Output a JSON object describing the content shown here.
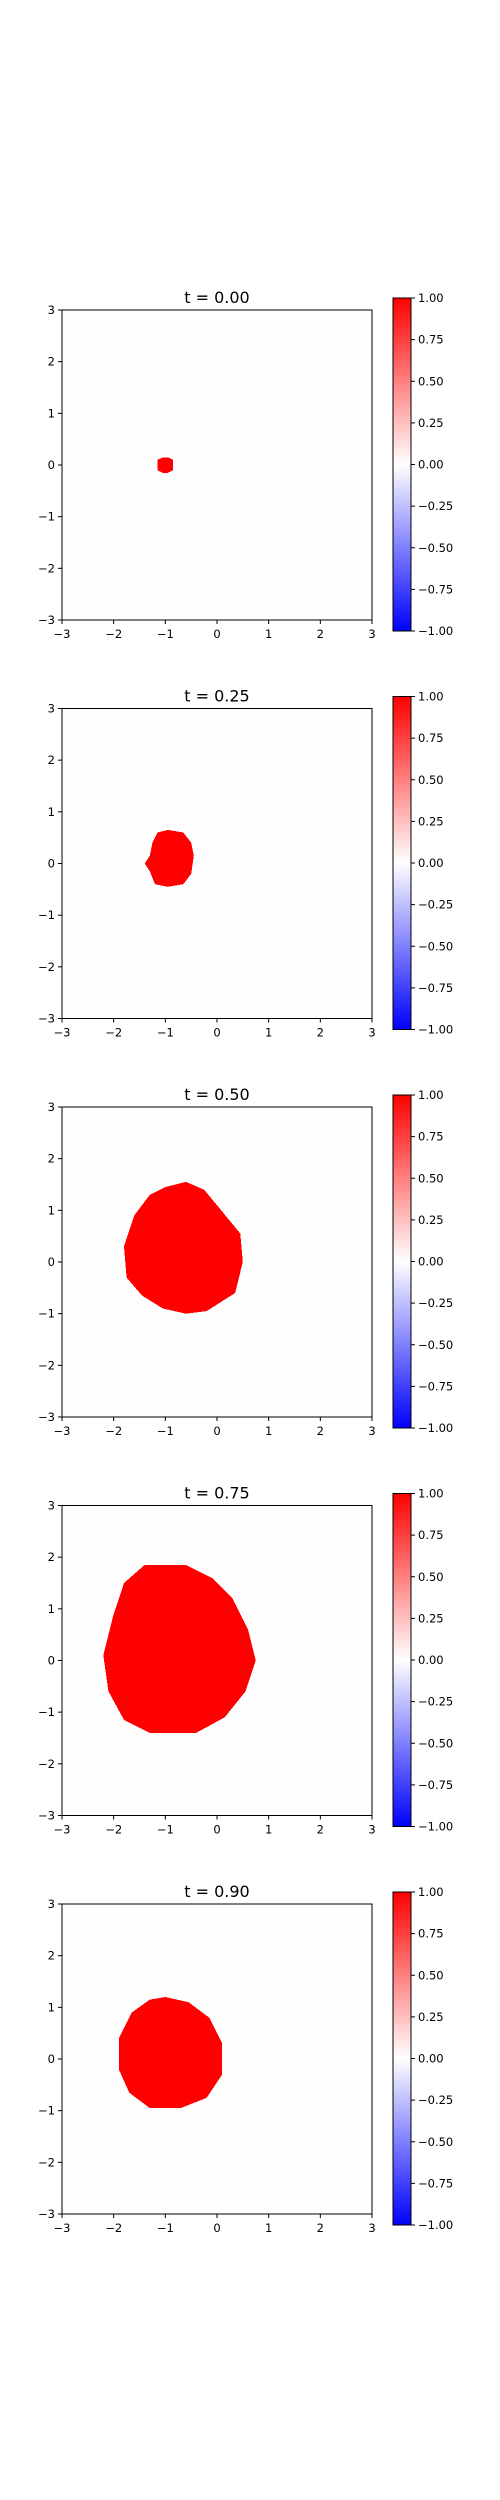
{
  "chart_data": [
    {
      "type": "heatmap",
      "title": "t = 0.00",
      "xlim": [
        -3,
        3
      ],
      "ylim": [
        -3,
        3
      ],
      "x_ticks": [
        -3,
        -2,
        -1,
        0,
        1,
        2,
        3
      ],
      "y_ticks": [
        -3,
        -2,
        -1,
        0,
        1,
        2,
        3
      ],
      "x_tick_labels": [
        "−3",
        "−2",
        "−1",
        "0",
        "1",
        "2",
        "3"
      ],
      "y_tick_labels": [
        "−3",
        "−2",
        "−1",
        "0",
        "1",
        "2",
        "3"
      ],
      "colormap": "bwr",
      "vmin": -1.0,
      "vmax": 1.0,
      "colorbar_ticks": [
        1.0,
        0.75,
        0.5,
        0.25,
        0.0,
        -0.25,
        -0.5,
        -0.75,
        -1.0
      ],
      "colorbar_tick_labels": [
        "1.00",
        "0.75",
        "0.50",
        "0.25",
        "0.00",
        "−0.25",
        "−0.50",
        "−0.75",
        "−1.00"
      ],
      "background_value": 0.0,
      "region_value": 1.0,
      "region_boundary": [
        [
          -0.95,
          0.15
        ],
        [
          -0.85,
          0.1
        ],
        [
          -0.85,
          -0.1
        ],
        [
          -0.95,
          -0.15
        ],
        [
          -1.05,
          -0.15
        ],
        [
          -1.15,
          -0.1
        ],
        [
          -1.15,
          0.1
        ],
        [
          -1.05,
          0.15
        ]
      ]
    },
    {
      "type": "heatmap",
      "title": "t = 0.25",
      "xlim": [
        -3,
        3
      ],
      "ylim": [
        -3,
        3
      ],
      "x_ticks": [
        -3,
        -2,
        -1,
        0,
        1,
        2,
        3
      ],
      "y_ticks": [
        -3,
        -2,
        -1,
        0,
        1,
        2,
        3
      ],
      "x_tick_labels": [
        "−3",
        "−2",
        "−1",
        "0",
        "1",
        "2",
        "3"
      ],
      "y_tick_labels": [
        "−3",
        "−2",
        "−1",
        "0",
        "1",
        "2",
        "3"
      ],
      "colormap": "bwr",
      "vmin": -1.0,
      "vmax": 1.0,
      "colorbar_ticks": [
        1.0,
        0.75,
        0.5,
        0.25,
        0.0,
        -0.25,
        -0.5,
        -0.75,
        -1.0
      ],
      "colorbar_tick_labels": [
        "1.00",
        "0.75",
        "0.50",
        "0.25",
        "0.00",
        "−0.25",
        "−0.50",
        "−0.75",
        "−1.00"
      ],
      "background_value": 0.0,
      "region_value": 1.0,
      "region_boundary": [
        [
          -0.95,
          0.65
        ],
        [
          -0.65,
          0.6
        ],
        [
          -0.5,
          0.4
        ],
        [
          -0.45,
          0.15
        ],
        [
          -0.5,
          -0.2
        ],
        [
          -0.65,
          -0.4
        ],
        [
          -0.95,
          -0.45
        ],
        [
          -1.2,
          -0.4
        ],
        [
          -1.3,
          -0.15
        ],
        [
          -1.4,
          0.0
        ],
        [
          -1.3,
          0.15
        ],
        [
          -1.25,
          0.4
        ],
        [
          -1.15,
          0.6
        ]
      ]
    },
    {
      "type": "heatmap",
      "title": "t = 0.50",
      "xlim": [
        -3,
        3
      ],
      "ylim": [
        -3,
        3
      ],
      "x_ticks": [
        -3,
        -2,
        -1,
        0,
        1,
        2,
        3
      ],
      "y_ticks": [
        -3,
        -2,
        -1,
        0,
        1,
        2,
        3
      ],
      "x_tick_labels": [
        "−3",
        "−2",
        "−1",
        "0",
        "1",
        "2",
        "3"
      ],
      "y_tick_labels": [
        "−3",
        "−2",
        "−1",
        "0",
        "1",
        "2",
        "3"
      ],
      "colormap": "bwr",
      "vmin": -1.0,
      "vmax": 1.0,
      "colorbar_ticks": [
        1.0,
        0.75,
        0.5,
        0.25,
        0.0,
        -0.25,
        -0.5,
        -0.75,
        -1.0
      ],
      "colorbar_tick_labels": [
        "1.00",
        "0.75",
        "0.50",
        "0.25",
        "0.00",
        "−0.25",
        "−0.50",
        "−0.75",
        "−1.00"
      ],
      "background_value": 0.0,
      "region_value": 1.0,
      "region_boundary": [
        [
          -1.0,
          1.45
        ],
        [
          -0.6,
          1.55
        ],
        [
          -0.25,
          1.4
        ],
        [
          0.0,
          1.1
        ],
        [
          0.45,
          0.55
        ],
        [
          0.5,
          0.0
        ],
        [
          0.35,
          -0.6
        ],
        [
          -0.2,
          -0.95
        ],
        [
          -0.6,
          -1.0
        ],
        [
          -1.05,
          -0.9
        ],
        [
          -1.45,
          -0.65
        ],
        [
          -1.75,
          -0.3
        ],
        [
          -1.8,
          0.3
        ],
        [
          -1.6,
          0.9
        ],
        [
          -1.3,
          1.3
        ]
      ]
    },
    {
      "type": "heatmap",
      "title": "t = 0.75",
      "xlim": [
        -3,
        3
      ],
      "ylim": [
        -3,
        3
      ],
      "x_ticks": [
        -3,
        -2,
        -1,
        0,
        1,
        2,
        3
      ],
      "y_ticks": [
        -3,
        -2,
        -1,
        0,
        1,
        2,
        3
      ],
      "x_tick_labels": [
        "−3",
        "−2",
        "−1",
        "0",
        "1",
        "2",
        "3"
      ],
      "y_tick_labels": [
        "−3",
        "−2",
        "−1",
        "0",
        "1",
        "2",
        "3"
      ],
      "colormap": "bwr",
      "vmin": -1.0,
      "vmax": 1.0,
      "colorbar_ticks": [
        1.0,
        0.75,
        0.5,
        0.25,
        0.0,
        -0.25,
        -0.5,
        -0.75,
        -1.0
      ],
      "colorbar_tick_labels": [
        "1.00",
        "0.75",
        "0.50",
        "0.25",
        "0.00",
        "−0.25",
        "−0.50",
        "−0.75",
        "−1.00"
      ],
      "background_value": 0.0,
      "region_value": 1.0,
      "region_boundary": [
        [
          -1.4,
          1.85
        ],
        [
          -0.6,
          1.85
        ],
        [
          -0.1,
          1.6
        ],
        [
          0.3,
          1.2
        ],
        [
          0.6,
          0.6
        ],
        [
          0.75,
          0.0
        ],
        [
          0.55,
          -0.6
        ],
        [
          0.15,
          -1.1
        ],
        [
          -0.4,
          -1.4
        ],
        [
          -1.3,
          -1.4
        ],
        [
          -1.8,
          -1.15
        ],
        [
          -2.1,
          -0.6
        ],
        [
          -2.2,
          0.1
        ],
        [
          -2.0,
          0.9
        ],
        [
          -1.8,
          1.5
        ]
      ]
    },
    {
      "type": "heatmap",
      "title": "t = 0.90",
      "xlim": [
        -3,
        3
      ],
      "ylim": [
        -3,
        3
      ],
      "x_ticks": [
        -3,
        -2,
        -1,
        0,
        1,
        2,
        3
      ],
      "y_ticks": [
        -3,
        -2,
        -1,
        0,
        1,
        2,
        3
      ],
      "x_tick_labels": [
        "−3",
        "−2",
        "−1",
        "0",
        "1",
        "2",
        "3"
      ],
      "y_tick_labels": [
        "−3",
        "−2",
        "−1",
        "0",
        "1",
        "2",
        "3"
      ],
      "colormap": "bwr",
      "vmin": -1.0,
      "vmax": 1.0,
      "colorbar_ticks": [
        1.0,
        0.75,
        0.5,
        0.25,
        0.0,
        -0.25,
        -0.5,
        -0.75,
        -1.0
      ],
      "colorbar_tick_labels": [
        "1.00",
        "0.75",
        "0.50",
        "0.25",
        "0.00",
        "−0.25",
        "−0.50",
        "−0.75",
        "−1.00"
      ],
      "background_value": 0.0,
      "region_value": 1.0,
      "region_boundary": [
        [
          -1.0,
          1.2
        ],
        [
          -0.55,
          1.1
        ],
        [
          -0.15,
          0.8
        ],
        [
          0.1,
          0.3
        ],
        [
          0.1,
          -0.3
        ],
        [
          -0.2,
          -0.75
        ],
        [
          -0.7,
          -0.95
        ],
        [
          -1.3,
          -0.95
        ],
        [
          -1.7,
          -0.65
        ],
        [
          -1.9,
          -0.2
        ],
        [
          -1.9,
          0.4
        ],
        [
          -1.65,
          0.9
        ],
        [
          -1.3,
          1.15
        ]
      ]
    }
  ]
}
